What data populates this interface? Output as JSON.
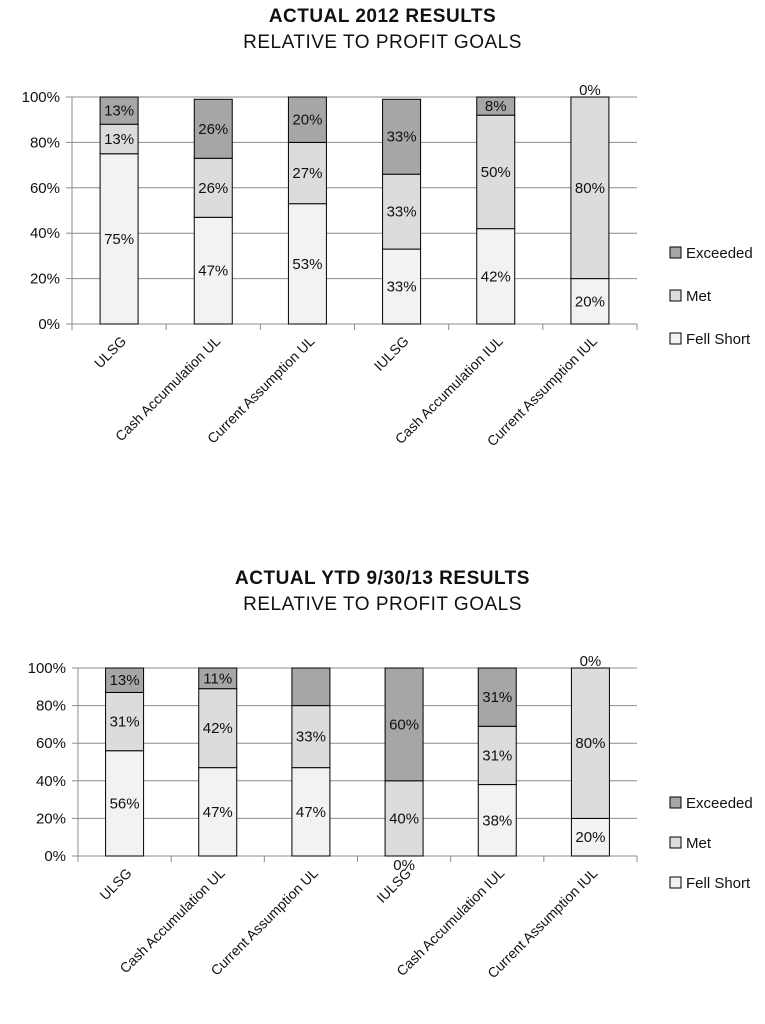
{
  "chart_data": [
    {
      "type": "bar",
      "stacked": true,
      "title": "ACTUAL 2012 RESULTS",
      "subtitle": "RELATIVE TO PROFIT GOALS",
      "xlabel": "",
      "ylabel": "",
      "ylim": [
        0,
        100
      ],
      "yticks": [
        "0%",
        "20%",
        "40%",
        "60%",
        "80%",
        "100%"
      ],
      "categories": [
        "ULSG",
        "Cash Accumulation UL",
        "Current Assumption UL",
        "IULSG",
        "Cash Accumulation IUL",
        "Current Assumption IUL"
      ],
      "series": [
        {
          "name": "Fell Short",
          "color": "#f2f2f2",
          "values": [
            75,
            47,
            53,
            33,
            42,
            20
          ],
          "labels": [
            "75%",
            "47%",
            "53%",
            "33%",
            "42%",
            "20%"
          ]
        },
        {
          "name": "Met",
          "color": "#dcdcdc",
          "values": [
            13,
            26,
            27,
            33,
            50,
            80
          ],
          "labels": [
            "13%",
            "26%",
            "27%",
            "33%",
            "50%",
            "80%"
          ]
        },
        {
          "name": "Exceeded",
          "color": "#a6a6a6",
          "values": [
            13,
            26,
            20,
            33,
            8,
            0
          ],
          "labels": [
            "13%",
            "26%",
            "20%",
            "33%",
            "8%",
            "0%"
          ]
        }
      ],
      "legend": "right",
      "legend_entries": [
        "Exceeded",
        "Met",
        "Fell Short"
      ],
      "grid": true
    },
    {
      "type": "bar",
      "stacked": true,
      "title": "ACTUAL YTD 9/30/13 RESULTS",
      "subtitle": "RELATIVE TO PROFIT GOALS",
      "xlabel": "",
      "ylabel": "",
      "ylim": [
        0,
        100
      ],
      "yticks": [
        "0%",
        "20%",
        "40%",
        "60%",
        "80%",
        "100%"
      ],
      "categories": [
        "ULSG",
        "Cash Accumulation UL",
        "Current Assumption UL",
        "IULSG",
        "Cash Accumulation IUL",
        "Current Assumption IUL"
      ],
      "series": [
        {
          "name": "Fell Short",
          "color": "#f2f2f2",
          "values": [
            56,
            47,
            47,
            0,
            38,
            20
          ],
          "labels": [
            "56%",
            "47%",
            "47%",
            "0%",
            "38%",
            "20%"
          ]
        },
        {
          "name": "Met",
          "color": "#dcdcdc",
          "values": [
            31,
            42,
            33,
            40,
            31,
            80
          ],
          "labels": [
            "31%",
            "42%",
            "33%",
            "40%",
            "31%",
            "80%"
          ]
        },
        {
          "name": "Exceeded",
          "color": "#a6a6a6",
          "values": [
            13,
            11,
            20,
            60,
            31,
            0
          ],
          "labels": [
            "13%",
            "11%",
            "",
            "60%",
            "31%",
            "0%"
          ]
        }
      ],
      "legend": "right",
      "legend_entries": [
        "Exceeded",
        "Met",
        "Fell Short"
      ],
      "grid": true
    }
  ]
}
